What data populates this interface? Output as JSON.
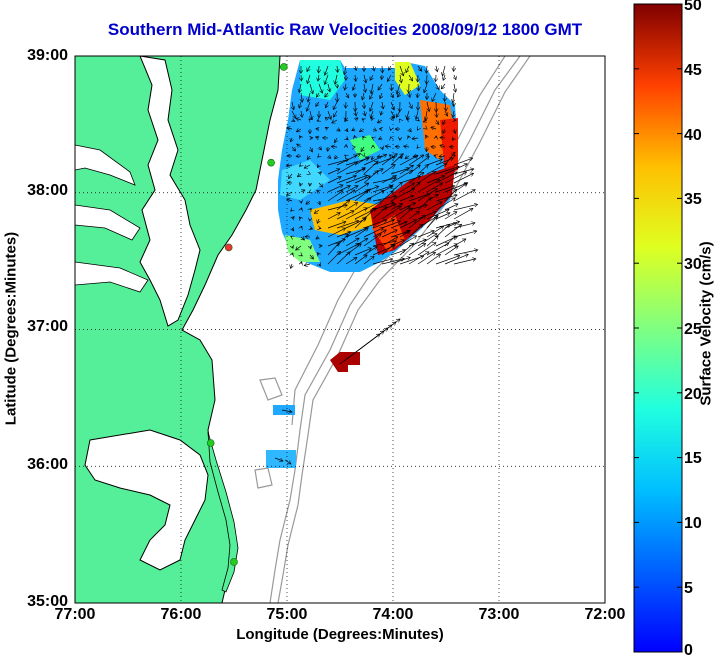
{
  "title": "Southern Mid-Atlantic Raw Velocities 2008/09/12 1800 GMT",
  "colors": {
    "title": "#0000cc",
    "land": "#55ee99",
    "water": "#ffffff",
    "coastline": "#000000",
    "bathymetry": "#999999",
    "grid": "#000000",
    "station": "#22cc22",
    "station_alt": "#ee3333",
    "vector": "#000000"
  },
  "x_axis": {
    "label": "Longitude (Degrees:Minutes)",
    "ticks": [
      "77:00",
      "76:00",
      "75:00",
      "74:00",
      "73:00",
      "72:00"
    ],
    "values": [
      -77,
      -76,
      -75,
      -74,
      -73,
      -72
    ]
  },
  "y_axis": {
    "label": "Latitude (Degrees:Minutes)",
    "ticks": [
      "39:00",
      "38:00",
      "37:00",
      "36:00",
      "35:00"
    ],
    "values": [
      39,
      38,
      37,
      36,
      35
    ]
  },
  "colorbar": {
    "label": "Surface Velocity (cm/s)",
    "ticks": [
      "50",
      "45",
      "40",
      "35",
      "30",
      "25",
      "20",
      "15",
      "10",
      "5",
      "0"
    ],
    "min": 0,
    "max": 50,
    "colormap": "jet"
  },
  "map_extent": {
    "lon": [
      -77,
      -72
    ],
    "lat": [
      35,
      39
    ]
  },
  "grid": "dotted",
  "stations": [
    {
      "lon": -75.03,
      "lat": 38.92,
      "color": "green"
    },
    {
      "lon": -75.15,
      "lat": 38.22,
      "color": "green"
    },
    {
      "lon": -75.55,
      "lat": 37.6,
      "color": "red"
    },
    {
      "lon": -75.72,
      "lat": 36.17,
      "color": "green"
    },
    {
      "lon": -75.5,
      "lat": 35.3,
      "color": "green"
    }
  ],
  "current_patches": [
    {
      "region": "main",
      "speed_range_cms": [
        2,
        50
      ]
    },
    {
      "region": "offshore-south",
      "speed_range_cms": [
        45,
        50
      ]
    },
    {
      "region": "nearshore-south",
      "speed_range_cms": [
        5,
        12
      ]
    }
  ]
}
